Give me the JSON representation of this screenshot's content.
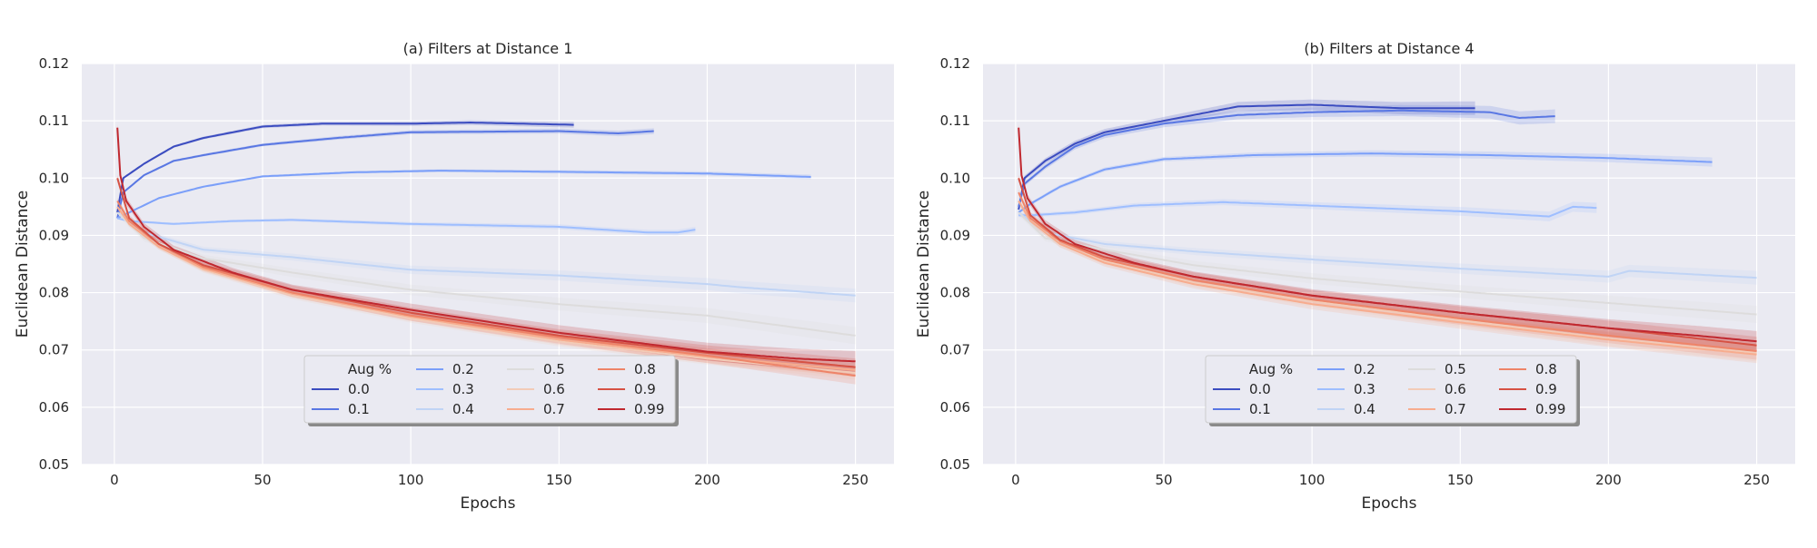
{
  "chart_data": [
    {
      "type": "line",
      "title": "(a) Filters at Distance 1",
      "xlabel": "Epochs",
      "ylabel": "Euclidean Distance",
      "xlim": [
        -11,
        263
      ],
      "ylim": [
        0.05,
        0.12
      ],
      "xticks": [
        0,
        50,
        100,
        150,
        200,
        250
      ],
      "yticks": [
        0.05,
        0.06,
        0.07,
        0.08,
        0.09,
        0.1,
        0.11,
        0.12
      ],
      "xtick_labels": [
        "0",
        "50",
        "100",
        "150",
        "200",
        "250"
      ],
      "ytick_labels": [
        "0.05",
        "0.06",
        "0.07",
        "0.08",
        "0.09",
        "0.10",
        "0.11",
        "0.12"
      ],
      "grid": true,
      "legend": {
        "title": "Aug %",
        "placement": "lower-center",
        "ncol": 4
      },
      "series": [
        {
          "name": "0.0",
          "color": "#3b4cc0",
          "end": 155,
          "band": 0.0005,
          "points": [
            [
              1,
              0.094
            ],
            [
              3,
              0.1
            ],
            [
              10,
              0.1025
            ],
            [
              20,
              0.1055
            ],
            [
              30,
              0.107
            ],
            [
              50,
              0.109
            ],
            [
              70,
              0.1095
            ],
            [
              100,
              0.1095
            ],
            [
              120,
              0.1097
            ],
            [
              155,
              0.1093
            ]
          ]
        },
        {
          "name": "0.1",
          "color": "#5977e3",
          "end": 182,
          "band": 0.0005,
          "points": [
            [
              1,
              0.093
            ],
            [
              3,
              0.0975
            ],
            [
              10,
              0.1005
            ],
            [
              20,
              0.103
            ],
            [
              30,
              0.104
            ],
            [
              50,
              0.1058
            ],
            [
              75,
              0.107
            ],
            [
              100,
              0.108
            ],
            [
              150,
              0.1082
            ],
            [
              170,
              0.1078
            ],
            [
              182,
              0.1082
            ]
          ]
        },
        {
          "name": "0.2",
          "color": "#7b9ff9",
          "end": 235,
          "band": 0.0004,
          "points": [
            [
              1,
              0.093
            ],
            [
              5,
              0.094
            ],
            [
              15,
              0.0965
            ],
            [
              30,
              0.0985
            ],
            [
              50,
              0.1003
            ],
            [
              80,
              0.101
            ],
            [
              110,
              0.1013
            ],
            [
              150,
              0.1011
            ],
            [
              200,
              0.1008
            ],
            [
              235,
              0.1002
            ]
          ]
        },
        {
          "name": "0.3",
          "color": "#9ebeff",
          "end": 196,
          "band": 0.0005,
          "points": [
            [
              1,
              0.093
            ],
            [
              5,
              0.0925
            ],
            [
              20,
              0.092
            ],
            [
              40,
              0.0925
            ],
            [
              60,
              0.0927
            ],
            [
              100,
              0.092
            ],
            [
              150,
              0.0915
            ],
            [
              180,
              0.0905
            ],
            [
              190,
              0.0905
            ],
            [
              196,
              0.091
            ]
          ]
        },
        {
          "name": "0.4",
          "color": "#c0d4f5",
          "end": 250,
          "band": 0.0012,
          "points": [
            [
              1,
              0.094
            ],
            [
              10,
              0.0905
            ],
            [
              30,
              0.0875
            ],
            [
              60,
              0.0862
            ],
            [
              100,
              0.084
            ],
            [
              150,
              0.083
            ],
            [
              200,
              0.0815
            ],
            [
              210,
              0.081
            ],
            [
              250,
              0.0795
            ]
          ]
        },
        {
          "name": "0.5",
          "color": "#dddcdc",
          "end": 250,
          "band": 0.0015,
          "points": [
            [
              1,
              0.094
            ],
            [
              10,
              0.0895
            ],
            [
              30,
              0.086
            ],
            [
              60,
              0.0835
            ],
            [
              100,
              0.0805
            ],
            [
              150,
              0.078
            ],
            [
              200,
              0.076
            ],
            [
              250,
              0.0725
            ]
          ]
        },
        {
          "name": "0.6",
          "color": "#f2cbb7",
          "end": 250,
          "band": 0.0012,
          "points": [
            [
              1,
              0.095
            ],
            [
              5,
              0.092
            ],
            [
              15,
              0.088
            ],
            [
              30,
              0.084
            ],
            [
              60,
              0.0795
            ],
            [
              100,
              0.0755
            ],
            [
              150,
              0.0715
            ],
            [
              200,
              0.0685
            ],
            [
              250,
              0.066
            ]
          ]
        },
        {
          "name": "0.7",
          "color": "#f7ac8e",
          "end": 250,
          "band": 0.0012,
          "points": [
            [
              1,
              0.095
            ],
            [
              5,
              0.092
            ],
            [
              15,
              0.088
            ],
            [
              30,
              0.0842
            ],
            [
              60,
              0.0798
            ],
            [
              100,
              0.0758
            ],
            [
              150,
              0.0718
            ],
            [
              200,
              0.0688
            ],
            [
              250,
              0.0665
            ]
          ]
        },
        {
          "name": "0.8",
          "color": "#ee8468",
          "end": 250,
          "band": 0.0015,
          "points": [
            [
              1,
              0.096
            ],
            [
              5,
              0.0925
            ],
            [
              15,
              0.0885
            ],
            [
              30,
              0.0845
            ],
            [
              60,
              0.08
            ],
            [
              100,
              0.076
            ],
            [
              150,
              0.0722
            ],
            [
              200,
              0.069
            ],
            [
              250,
              0.0655
            ]
          ]
        },
        {
          "name": "0.9",
          "color": "#d65244",
          "end": 250,
          "band": 0.0015,
          "points": [
            [
              1,
              0.1
            ],
            [
              5,
              0.093
            ],
            [
              15,
              0.0885
            ],
            [
              30,
              0.0848
            ],
            [
              60,
              0.0805
            ],
            [
              100,
              0.0765
            ],
            [
              150,
              0.0725
            ],
            [
              200,
              0.0695
            ],
            [
              250,
              0.067
            ]
          ]
        },
        {
          "name": "0.99",
          "color": "#c0282f",
          "end": 250,
          "band": 0.0018,
          "points": [
            [
              1,
              0.1088
            ],
            [
              2,
              0.1005
            ],
            [
              4,
              0.096
            ],
            [
              10,
              0.0915
            ],
            [
              20,
              0.0875
            ],
            [
              40,
              0.0835
            ],
            [
              60,
              0.0805
            ],
            [
              100,
              0.077
            ],
            [
              150,
              0.073
            ],
            [
              200,
              0.0697
            ],
            [
              230,
              0.0685
            ],
            [
              250,
              0.068
            ]
          ]
        }
      ]
    },
    {
      "type": "line",
      "title": "(b) Filters at Distance 4",
      "xlabel": "Epochs",
      "ylabel": "Euclidean Distance",
      "xlim": [
        -11,
        263
      ],
      "ylim": [
        0.05,
        0.12
      ],
      "xticks": [
        0,
        50,
        100,
        150,
        200,
        250
      ],
      "yticks": [
        0.05,
        0.06,
        0.07,
        0.08,
        0.09,
        0.1,
        0.11,
        0.12
      ],
      "xtick_labels": [
        "0",
        "50",
        "100",
        "150",
        "200",
        "250"
      ],
      "ytick_labels": [
        "0.05",
        "0.06",
        "0.07",
        "0.08",
        "0.09",
        "0.10",
        "0.11",
        "0.12"
      ],
      "grid": true,
      "legend": {
        "title": "Aug %",
        "placement": "lower-center",
        "ncol": 4
      },
      "series": [
        {
          "name": "0.0",
          "color": "#3b4cc0",
          "end": 155,
          "band": 0.0012,
          "points": [
            [
              1,
              0.0945
            ],
            [
              3,
              0.1
            ],
            [
              10,
              0.103
            ],
            [
              20,
              0.106
            ],
            [
              30,
              0.108
            ],
            [
              50,
              0.11
            ],
            [
              75,
              0.1125
            ],
            [
              100,
              0.1128
            ],
            [
              130,
              0.1122
            ],
            [
              155,
              0.1122
            ]
          ]
        },
        {
          "name": "0.1",
          "color": "#5977e3",
          "end": 182,
          "band": 0.0012,
          "points": [
            [
              1,
              0.095
            ],
            [
              3,
              0.099
            ],
            [
              10,
              0.102
            ],
            [
              20,
              0.1055
            ],
            [
              30,
              0.1075
            ],
            [
              50,
              0.1095
            ],
            [
              75,
              0.111
            ],
            [
              100,
              0.1115
            ],
            [
              130,
              0.1118
            ],
            [
              160,
              0.1115
            ],
            [
              170,
              0.1105
            ],
            [
              182,
              0.1108
            ]
          ]
        },
        {
          "name": "0.2",
          "color": "#7b9ff9",
          "end": 235,
          "band": 0.0008,
          "points": [
            [
              1,
              0.094
            ],
            [
              5,
              0.0955
            ],
            [
              15,
              0.0985
            ],
            [
              30,
              0.1015
            ],
            [
              50,
              0.1033
            ],
            [
              80,
              0.104
            ],
            [
              120,
              0.1043
            ],
            [
              160,
              0.104
            ],
            [
              200,
              0.1035
            ],
            [
              235,
              0.1028
            ]
          ]
        },
        {
          "name": "0.3",
          "color": "#9ebeff",
          "end": 196,
          "band": 0.0009,
          "points": [
            [
              1,
              0.0935
            ],
            [
              5,
              0.0935
            ],
            [
              20,
              0.094
            ],
            [
              40,
              0.0952
            ],
            [
              70,
              0.0958
            ],
            [
              100,
              0.0952
            ],
            [
              150,
              0.0942
            ],
            [
              180,
              0.0933
            ],
            [
              188,
              0.095
            ],
            [
              196,
              0.0948
            ]
          ]
        },
        {
          "name": "0.4",
          "color": "#c0d4f5",
          "end": 250,
          "band": 0.0012,
          "points": [
            [
              1,
              0.094
            ],
            [
              10,
              0.0905
            ],
            [
              30,
              0.0885
            ],
            [
              60,
              0.0872
            ],
            [
              100,
              0.0858
            ],
            [
              150,
              0.0842
            ],
            [
              200,
              0.0828
            ],
            [
              207,
              0.0838
            ],
            [
              250,
              0.0826
            ]
          ]
        },
        {
          "name": "0.5",
          "color": "#dddcdc",
          "end": 250,
          "band": 0.0015,
          "points": [
            [
              1,
              0.094
            ],
            [
              10,
              0.0895
            ],
            [
              30,
              0.0875
            ],
            [
              60,
              0.0848
            ],
            [
              100,
              0.0825
            ],
            [
              150,
              0.0802
            ],
            [
              200,
              0.0782
            ],
            [
              250,
              0.0762
            ]
          ]
        },
        {
          "name": "0.6",
          "color": "#f2cbb7",
          "end": 250,
          "band": 0.0015,
          "points": [
            [
              1,
              0.096
            ],
            [
              5,
              0.0925
            ],
            [
              15,
              0.0885
            ],
            [
              30,
              0.0855
            ],
            [
              60,
              0.0818
            ],
            [
              100,
              0.0785
            ],
            [
              150,
              0.0752
            ],
            [
              200,
              0.072
            ],
            [
              250,
              0.0695
            ]
          ]
        },
        {
          "name": "0.7",
          "color": "#f7ac8e",
          "end": 250,
          "band": 0.0015,
          "points": [
            [
              1,
              0.096
            ],
            [
              5,
              0.0925
            ],
            [
              15,
              0.0885
            ],
            [
              30,
              0.0852
            ],
            [
              60,
              0.0815
            ],
            [
              100,
              0.078
            ],
            [
              150,
              0.0748
            ],
            [
              200,
              0.0718
            ],
            [
              250,
              0.0692
            ]
          ]
        },
        {
          "name": "0.8",
          "color": "#ee8468",
          "end": 250,
          "band": 0.0015,
          "points": [
            [
              1,
              0.0975
            ],
            [
              5,
              0.093
            ],
            [
              15,
              0.089
            ],
            [
              30,
              0.0858
            ],
            [
              60,
              0.0822
            ],
            [
              100,
              0.0788
            ],
            [
              150,
              0.0755
            ],
            [
              200,
              0.0725
            ],
            [
              250,
              0.0698
            ]
          ]
        },
        {
          "name": "0.9",
          "color": "#d65244",
          "end": 250,
          "band": 0.0015,
          "points": [
            [
              1,
              0.1
            ],
            [
              5,
              0.0935
            ],
            [
              15,
              0.0892
            ],
            [
              30,
              0.0862
            ],
            [
              60,
              0.0828
            ],
            [
              100,
              0.0795
            ],
            [
              150,
              0.0765
            ],
            [
              200,
              0.0738
            ],
            [
              250,
              0.0708
            ]
          ]
        },
        {
          "name": "0.99",
          "color": "#c0282f",
          "end": 250,
          "band": 0.0018,
          "points": [
            [
              1,
              0.1088
            ],
            [
              2,
              0.1005
            ],
            [
              4,
              0.0965
            ],
            [
              10,
              0.092
            ],
            [
              20,
              0.0885
            ],
            [
              40,
              0.0852
            ],
            [
              60,
              0.0828
            ],
            [
              100,
              0.0795
            ],
            [
              150,
              0.0765
            ],
            [
              200,
              0.0738
            ],
            [
              230,
              0.0725
            ],
            [
              250,
              0.0715
            ]
          ]
        }
      ]
    }
  ]
}
